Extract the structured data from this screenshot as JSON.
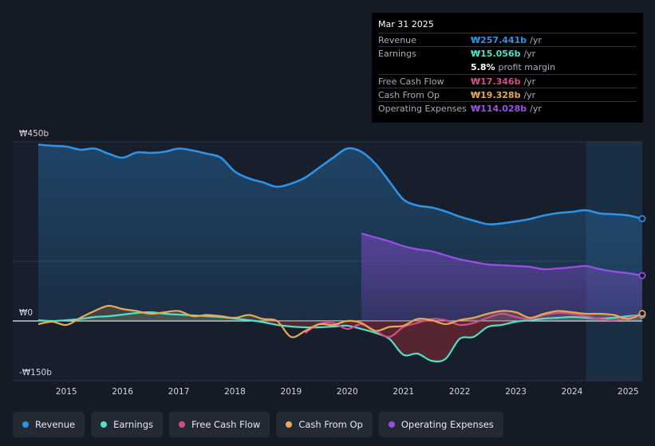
{
  "tooltip": {
    "date": "Mar 31 2025",
    "rows": [
      {
        "label": "Revenue",
        "value": "₩257.441b",
        "unit": "/yr",
        "color": "#2e93e6"
      },
      {
        "label": "Earnings",
        "value": "₩15.056b",
        "unit": "/yr",
        "color": "#4fe0c8"
      },
      {
        "label": "",
        "value": "5.8%",
        "unit": "profit margin",
        "color": "#ffffff"
      },
      {
        "label": "Free Cash Flow",
        "value": "₩17.346b",
        "unit": "/yr",
        "color": "#d64b87"
      },
      {
        "label": "Cash From Op",
        "value": "₩19.328b",
        "unit": "/yr",
        "color": "#e8a954"
      },
      {
        "label": "Operating Expenses",
        "value": "₩114.028b",
        "unit": "/yr",
        "color": "#9b4fe8"
      }
    ]
  },
  "legend": [
    {
      "label": "Revenue",
      "color": "#2e93e6"
    },
    {
      "label": "Earnings",
      "color": "#4fe0c8"
    },
    {
      "label": "Free Cash Flow",
      "color": "#d64b87"
    },
    {
      "label": "Cash From Op",
      "color": "#e8a954"
    },
    {
      "label": "Operating Expenses",
      "color": "#9b4fe8"
    }
  ],
  "chart_data": {
    "type": "line",
    "title": "",
    "xlabel": "",
    "ylabel": "",
    "ylim": [
      -150,
      450
    ],
    "xlim": [
      2014.5,
      2025.25
    ],
    "y_tick_labels": [
      {
        "value": 450,
        "label": "₩450b"
      },
      {
        "value": 0,
        "label": "₩0"
      },
      {
        "value": -150,
        "label": "-₩150b"
      }
    ],
    "x_tick_labels": [
      "2015",
      "2016",
      "2017",
      "2018",
      "2019",
      "2020",
      "2021",
      "2022",
      "2023",
      "2024",
      "2025"
    ],
    "x_ticks": [
      2015,
      2016,
      2017,
      2018,
      2019,
      2020,
      2021,
      2022,
      2023,
      2024,
      2025
    ],
    "highlight_from": 2024.25,
    "series": [
      {
        "name": "Revenue",
        "color": "#2e93e6",
        "x": [
          2014.5,
          2014.75,
          2015,
          2015.25,
          2015.5,
          2015.75,
          2016,
          2016.25,
          2016.5,
          2016.75,
          2017,
          2017.25,
          2017.5,
          2017.75,
          2018,
          2018.25,
          2018.5,
          2018.75,
          2019,
          2019.25,
          2019.5,
          2019.75,
          2020,
          2020.25,
          2020.5,
          2020.75,
          2021,
          2021.25,
          2021.5,
          2021.75,
          2022,
          2022.25,
          2022.5,
          2022.75,
          2023,
          2023.25,
          2023.5,
          2023.75,
          2024,
          2024.25,
          2024.5,
          2024.75,
          2025,
          2025.25
        ],
        "values": [
          443,
          440,
          438,
          430,
          433,
          420,
          410,
          423,
          422,
          425,
          433,
          428,
          420,
          410,
          375,
          358,
          348,
          337,
          345,
          360,
          385,
          410,
          433,
          425,
          395,
          350,
          305,
          290,
          285,
          275,
          262,
          252,
          243,
          245,
          250,
          256,
          265,
          271,
          274,
          278,
          270,
          268,
          265,
          257
        ]
      },
      {
        "name": "Earnings",
        "color": "#4fe0c8",
        "x": [
          2014.5,
          2014.75,
          2015,
          2015.25,
          2015.5,
          2015.75,
          2016,
          2016.25,
          2016.5,
          2016.75,
          2017,
          2017.25,
          2017.5,
          2017.75,
          2018,
          2018.25,
          2018.5,
          2018.75,
          2019,
          2019.25,
          2019.5,
          2019.75,
          2020,
          2020.25,
          2020.5,
          2020.75,
          2021,
          2021.25,
          2021.5,
          2021.75,
          2022,
          2022.25,
          2022.5,
          2022.75,
          2023,
          2023.25,
          2023.5,
          2023.75,
          2024,
          2024.25,
          2024.5,
          2024.75,
          2025,
          2025.25
        ],
        "values": [
          2,
          0,
          2,
          5,
          10,
          12,
          16,
          20,
          22,
          18,
          16,
          14,
          12,
          10,
          6,
          2,
          -3,
          -10,
          -14,
          -16,
          -16,
          -14,
          -12,
          -20,
          -30,
          -45,
          -85,
          -82,
          -100,
          -95,
          -45,
          -40,
          -15,
          -10,
          -2,
          2,
          6,
          8,
          10,
          8,
          6,
          8,
          12,
          15
        ]
      },
      {
        "name": "Free Cash Flow",
        "color": "#d64b87",
        "x": [
          2019.25,
          2019.5,
          2019.75,
          2020,
          2020.25,
          2020.5,
          2020.75,
          2021,
          2021.25,
          2021.5,
          2021.75,
          2022,
          2022.25,
          2022.5,
          2022.75,
          2023,
          2023.25,
          2023.5,
          2023.75,
          2024,
          2024.25,
          2024.5,
          2024.75,
          2025,
          2025.25
        ],
        "values": [
          -30,
          -8,
          -5,
          -20,
          -8,
          -25,
          -40,
          -15,
          -5,
          5,
          2,
          -10,
          -5,
          8,
          18,
          10,
          5,
          15,
          20,
          18,
          12,
          5,
          2,
          8,
          17
        ]
      },
      {
        "name": "Cash From Op",
        "color": "#e8a954",
        "x": [
          2014.5,
          2014.75,
          2015,
          2015.25,
          2015.5,
          2015.75,
          2016,
          2016.25,
          2016.5,
          2016.75,
          2017,
          2017.25,
          2017.5,
          2017.75,
          2018,
          2018.25,
          2018.5,
          2018.75,
          2019,
          2019.25,
          2019.5,
          2019.75,
          2020,
          2020.25,
          2020.5,
          2020.75,
          2021,
          2021.25,
          2021.5,
          2021.75,
          2022,
          2022.25,
          2022.5,
          2022.75,
          2023,
          2023.25,
          2023.5,
          2023.75,
          2024,
          2024.25,
          2024.5,
          2024.75,
          2025,
          2025.25
        ],
        "values": [
          -8,
          -2,
          -10,
          8,
          25,
          38,
          30,
          25,
          18,
          22,
          25,
          12,
          15,
          12,
          8,
          15,
          5,
          0,
          -40,
          -25,
          -8,
          -10,
          0,
          -5,
          -25,
          -15,
          -12,
          5,
          2,
          -8,
          2,
          8,
          18,
          25,
          22,
          8,
          18,
          25,
          22,
          18,
          18,
          15,
          5,
          19
        ]
      },
      {
        "name": "Operating Expenses",
        "color": "#9b4fe8",
        "x": [
          2020.25,
          2020.5,
          2020.75,
          2021,
          2021.25,
          2021.5,
          2021.75,
          2022,
          2022.25,
          2022.5,
          2022.75,
          2023,
          2023.25,
          2023.5,
          2023.75,
          2024,
          2024.25,
          2024.5,
          2024.75,
          2025,
          2025.25
        ],
        "values": [
          220,
          210,
          200,
          188,
          180,
          175,
          165,
          155,
          148,
          142,
          140,
          138,
          136,
          130,
          132,
          135,
          138,
          130,
          124,
          120,
          114
        ]
      }
    ]
  }
}
